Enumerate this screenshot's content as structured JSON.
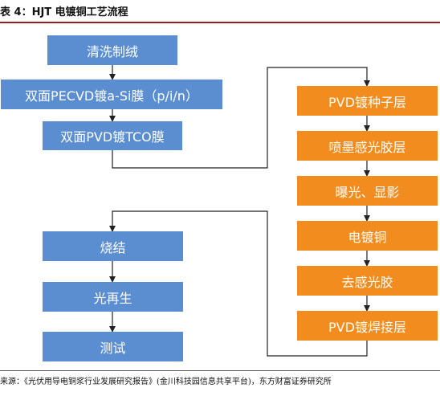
{
  "title": "表 4：HJT 电镀铜工艺流程",
  "left_column_top": {
    "steps": [
      "清洗制绒",
      "双面PECVD镀a-Si膜（p/i/n）",
      "双面PVD镀TCO膜"
    ]
  },
  "right_column": {
    "steps": [
      "PVD镀种子层",
      "喷墨感光胶层",
      "曝光、显影",
      "电镀铜",
      "去感光胶",
      "PVD镀焊接层"
    ]
  },
  "left_column_bottom": {
    "steps": [
      "烧结",
      "光再生",
      "测试"
    ]
  },
  "source": "来源：《光伏用导电铜浆行业发展研究报告》(金川科技园信息共享平台)，东方财富证券研究所",
  "colors": {
    "blue": "#5b8ed1",
    "orange": "#f28c1f",
    "title_rule": "#9b1c24"
  }
}
